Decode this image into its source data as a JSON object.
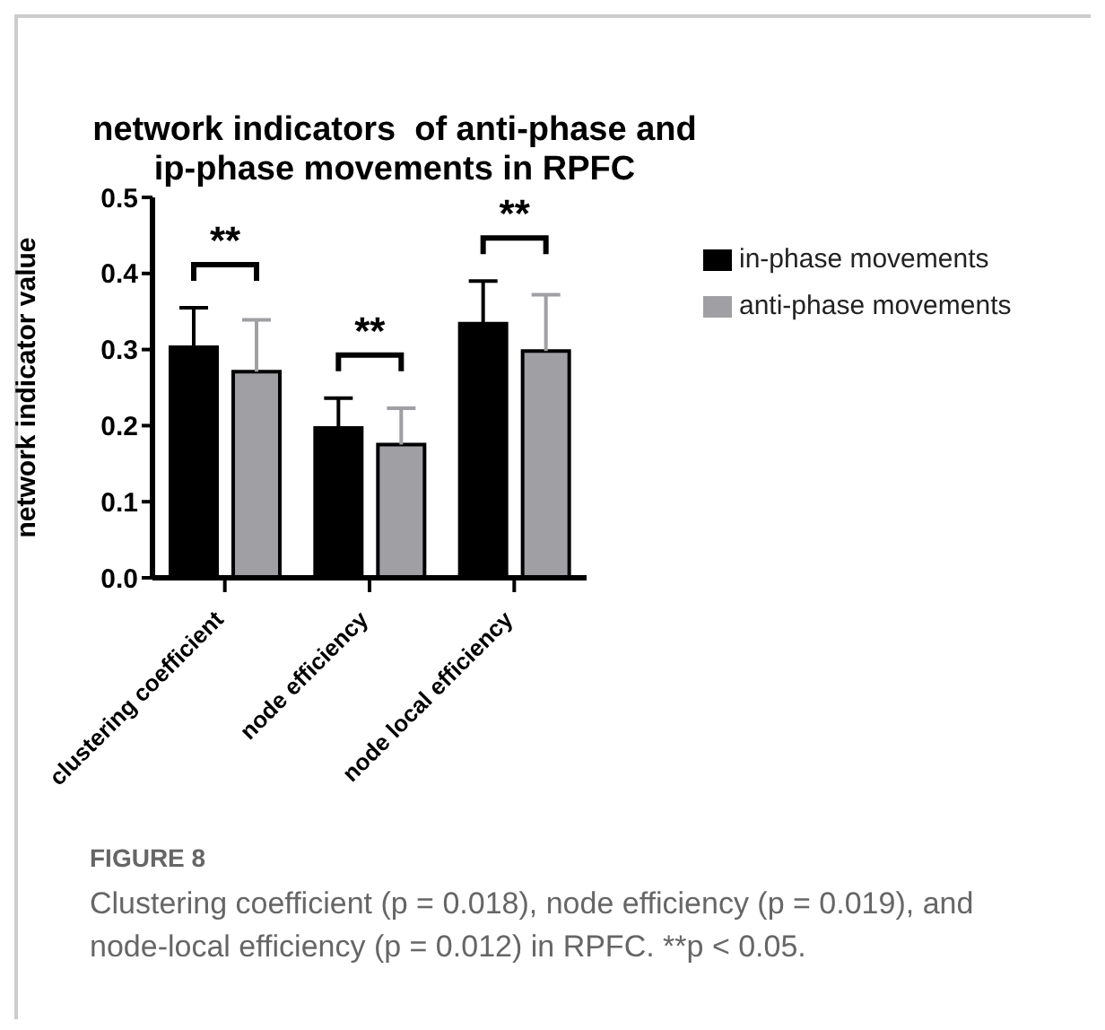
{
  "chart_data": {
    "type": "bar",
    "title": "network indicators  of anti-phase and ip-phase movements in RPFC",
    "ylabel": "network indicator value",
    "categories": [
      "clustering coefficient",
      "node efficiency",
      "node local efficiency"
    ],
    "series": [
      {
        "name": "in-phase movements",
        "color": "#000000",
        "values": [
          0.303,
          0.197,
          0.334
        ],
        "errors": [
          [
            0.303,
            0.355
          ],
          [
            0.197,
            0.236
          ],
          [
            0.334,
            0.39
          ]
        ]
      },
      {
        "name": "anti-phase movements",
        "color": "#a0a0a4",
        "values": [
          0.271,
          0.175,
          0.298
        ],
        "errors": [
          [
            0.271,
            0.339
          ],
          [
            0.175,
            0.223
          ],
          [
            0.298,
            0.372
          ]
        ]
      }
    ],
    "ylim": [
      0,
      0.5
    ],
    "yticks": [
      {
        "value": 0,
        "label": "0.0"
      },
      0.1,
      0.2,
      0.3,
      0.4,
      0.5
    ],
    "grid": false,
    "legend": "right",
    "annotations": [
      "**",
      "**",
      "**",
      "FIGURE 8",
      "Clustering coefficient (p = 0.018), node efficiency (p = 0.019), and node-local efficiency (p = 0.012) in RPFC. **p < 0.05."
    ]
  }
}
